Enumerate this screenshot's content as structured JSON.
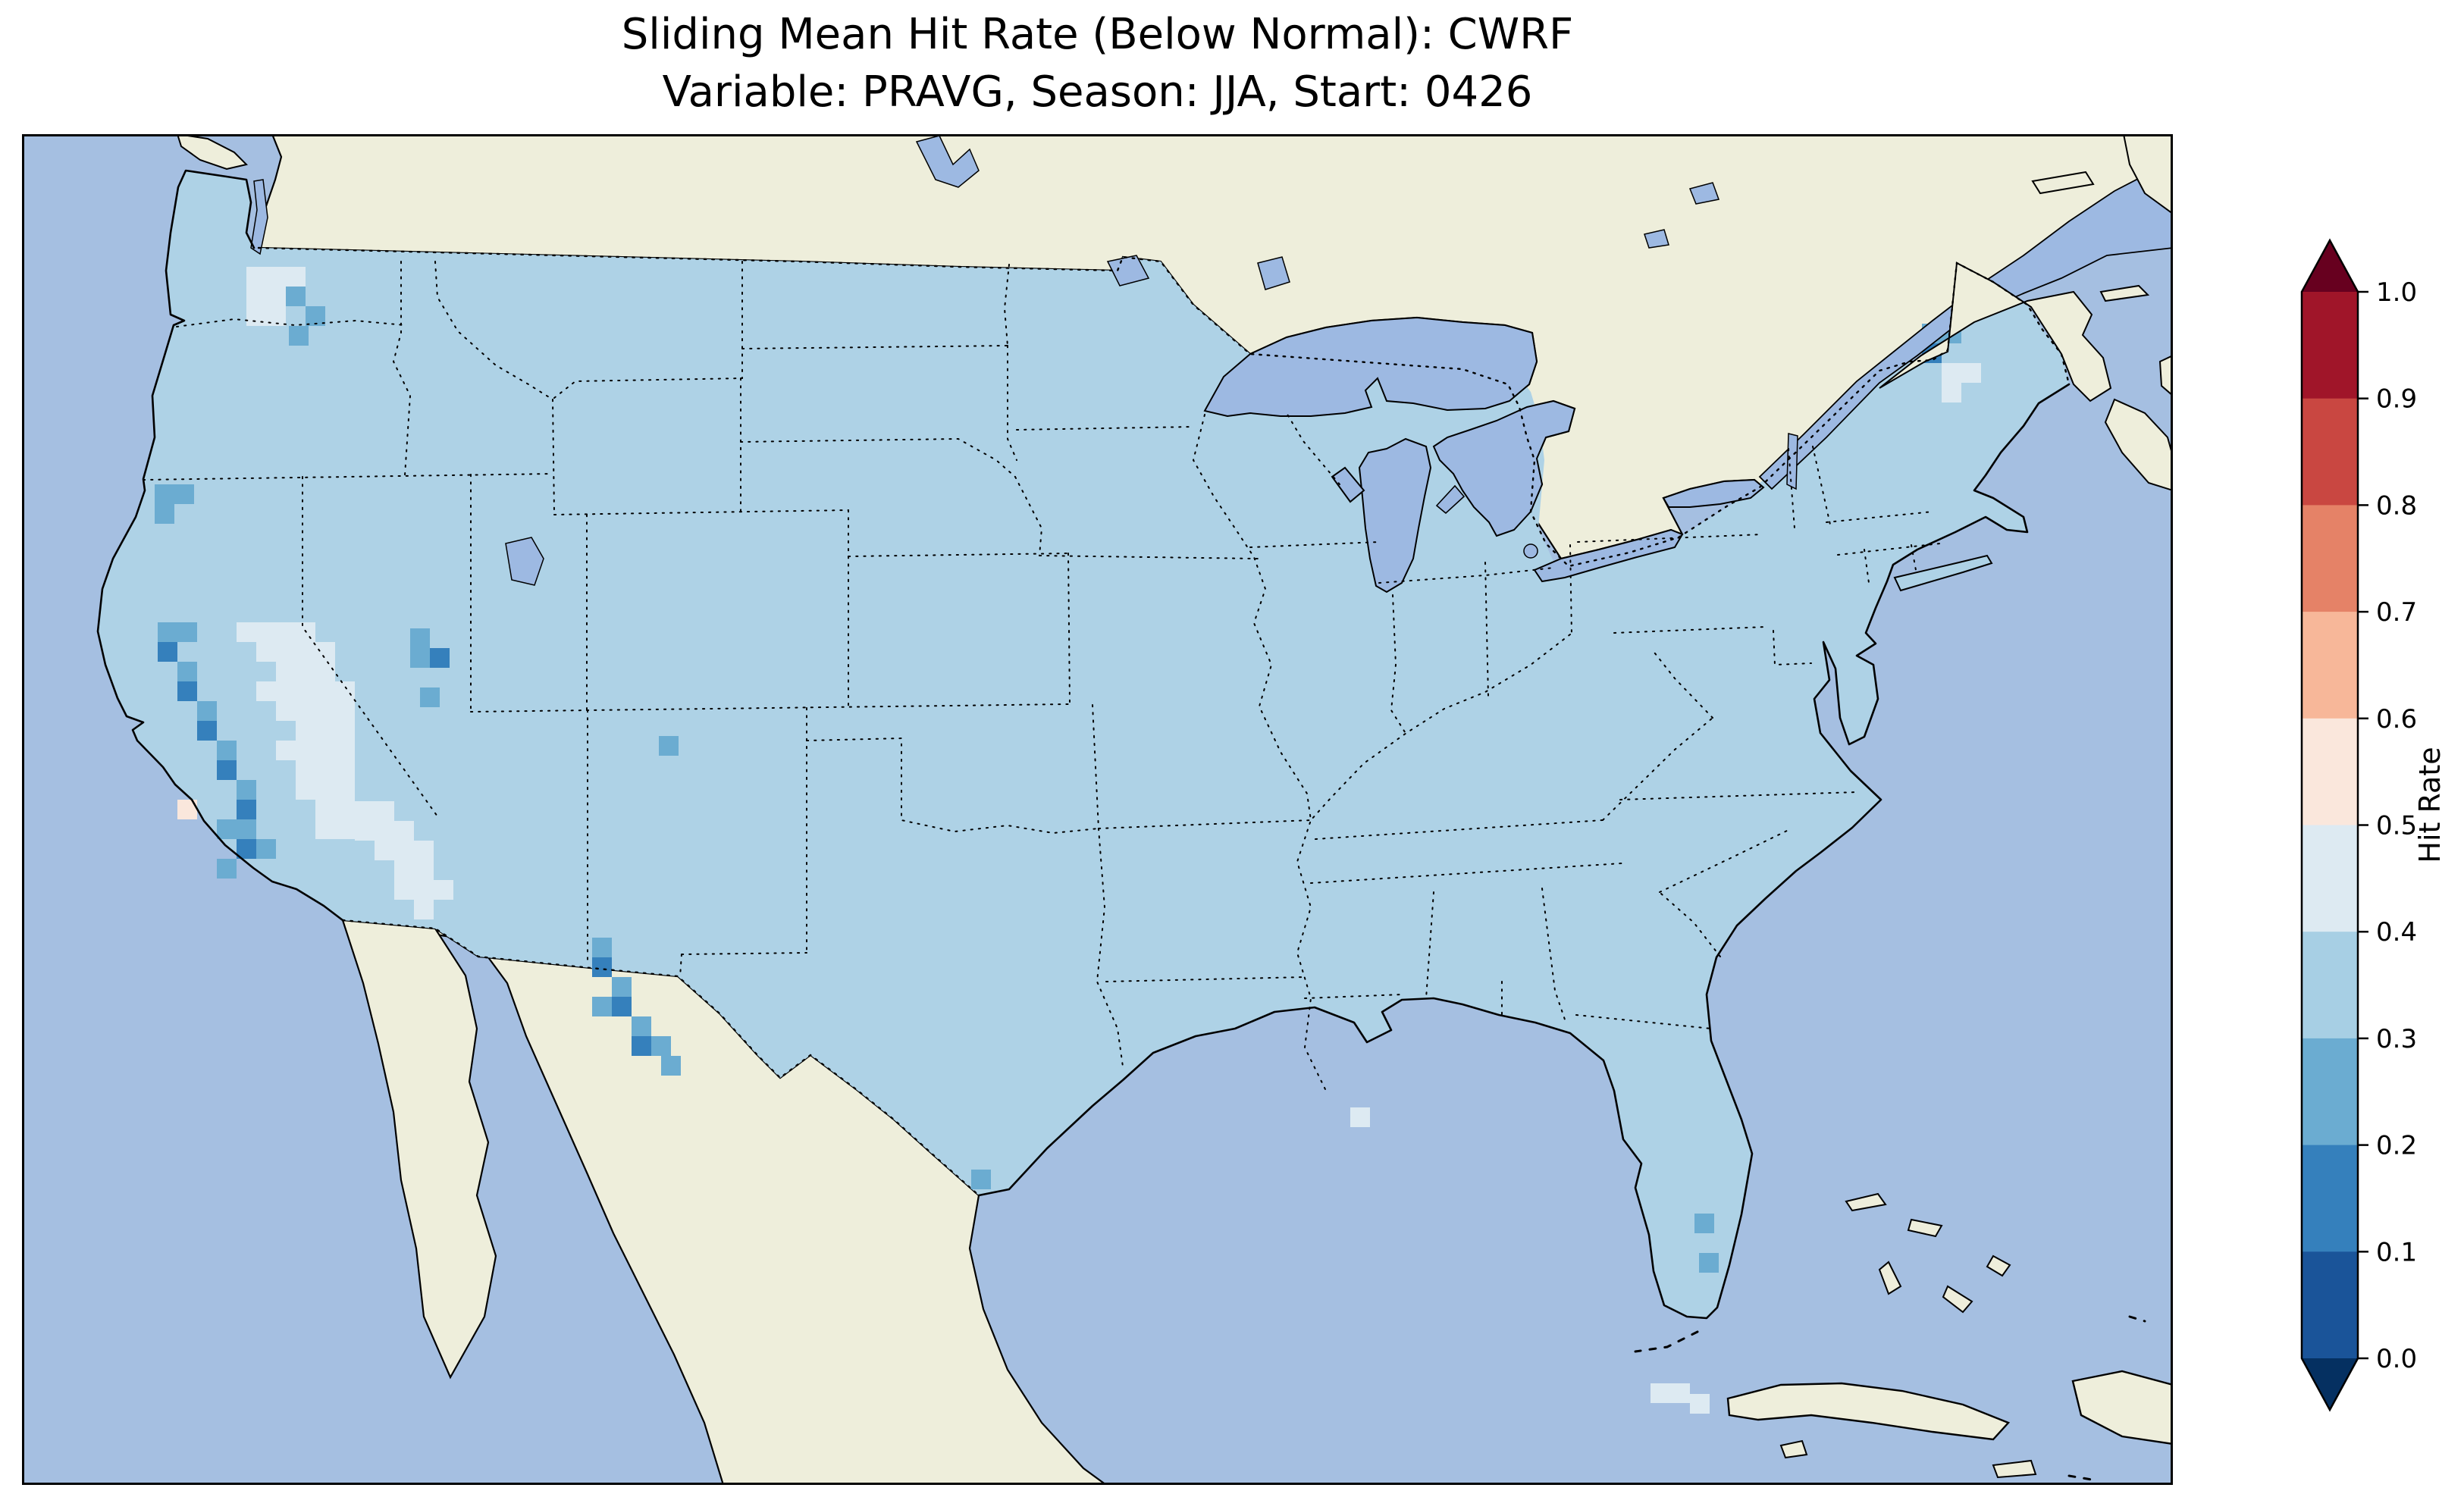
{
  "title": {
    "line1": "Sliding Mean Hit Rate (Below Normal): CWRF",
    "line2": "Variable: PRAVG, Season: JJA, Start: 0426"
  },
  "colorbar": {
    "label": "Hit Rate",
    "ticks": [
      "1.0",
      "0.9",
      "0.8",
      "0.7",
      "0.6",
      "0.5",
      "0.4",
      "0.3",
      "0.2",
      "0.1",
      "0.0"
    ],
    "segments": [
      "#a01529",
      "#c94741",
      "#e58267",
      "#f7b799",
      "#fae7dc",
      "#ddeaf2",
      "#a7cfe4",
      "#6bacd1",
      "#3580bc",
      "#1a5499"
    ],
    "arrow_top": "#67001f",
    "arrow_bottom": "#053061"
  },
  "map": {
    "colors": {
      "ocean": "#a5bfe1",
      "land": "#eeeedb",
      "lake": "#9db9e2",
      "base": "#aed2e6"
    }
  },
  "chart_data": {
    "type": "heatmap",
    "title": "Sliding Mean Hit Rate (Below Normal): CWRF",
    "metric": "Sliding Mean Hit Rate (Below Normal)",
    "model": "CWRF",
    "variable": "PRAVG",
    "season": "JJA",
    "start": "0426",
    "colormap": "RdBu_r",
    "value_range": [
      0.0,
      1.0
    ],
    "bin_width": 0.1,
    "colorbar_label": "Hit Rate",
    "legend_position": "right",
    "baseline_hit_rate": "0.3-0.4 over most of CONUS",
    "anomaly_regions": [
      {
        "region": "Western Washington / Puget Sound",
        "hit_rate": "0.4-0.5 with isolated 0.2-0.3"
      },
      {
        "region": "Eastern California / Sierra Nevada",
        "hit_rate": "0.1-0.3"
      },
      {
        "region": "Central Nevada",
        "hit_rate": "0.4-0.5"
      },
      {
        "region": "Southern Nevada / NW Arizona",
        "hit_rate": "0.4-0.5"
      },
      {
        "region": "Northern Utah",
        "hit_rate": "0.1-0.3"
      },
      {
        "region": "Central Colorado",
        "hit_rate": "0.2-0.3"
      },
      {
        "region": "Central New Mexico / West Texas border",
        "hit_rate": "0.1-0.3"
      },
      {
        "region": "South Texas coast",
        "hit_rate": "0.2-0.3"
      },
      {
        "region": "Northern Maine",
        "hit_rate": "0.1-0.3 with nearby 0.4-0.5"
      },
      {
        "region": "Southeast Florida",
        "hit_rate": "0.2-0.3"
      }
    ],
    "bin_colors": {
      "1": "#3580bc",
      "2": "#6bacd1",
      "4": "#ddeaf2",
      "5": "#fae7dc"
    },
    "bin_values": {
      "1": "0.1-0.2",
      "2": "0.2-0.3",
      "4": "0.4-0.5",
      "5": "0.5-0.6"
    },
    "cells": [
      [
        296,
        175,
        4
      ],
      [
        322,
        175,
        4
      ],
      [
        348,
        175,
        4
      ],
      [
        296,
        201,
        4
      ],
      [
        322,
        201,
        4
      ],
      [
        296,
        227,
        4
      ],
      [
        322,
        227,
        4
      ],
      [
        348,
        201,
        2
      ],
      [
        374,
        227,
        2
      ],
      [
        352,
        253,
        2
      ],
      [
        175,
        462,
        2
      ],
      [
        201,
        462,
        2
      ],
      [
        175,
        488,
        2
      ],
      [
        179,
        644,
        2
      ],
      [
        205,
        644,
        2
      ],
      [
        179,
        670,
        1
      ],
      [
        205,
        696,
        2
      ],
      [
        205,
        722,
        1
      ],
      [
        231,
        748,
        2
      ],
      [
        231,
        774,
        1
      ],
      [
        257,
        800,
        2
      ],
      [
        257,
        826,
        1
      ],
      [
        283,
        852,
        2
      ],
      [
        283,
        878,
        1
      ],
      [
        257,
        904,
        2
      ],
      [
        283,
        904,
        2
      ],
      [
        309,
        930,
        2
      ],
      [
        283,
        930,
        1
      ],
      [
        257,
        956,
        2
      ],
      [
        205,
        878,
        5
      ],
      [
        283,
        644,
        4
      ],
      [
        309,
        644,
        4
      ],
      [
        335,
        644,
        4
      ],
      [
        361,
        644,
        4
      ],
      [
        309,
        670,
        4
      ],
      [
        335,
        670,
        4
      ],
      [
        361,
        670,
        4
      ],
      [
        387,
        670,
        4
      ],
      [
        335,
        696,
        4
      ],
      [
        361,
        696,
        4
      ],
      [
        387,
        696,
        4
      ],
      [
        309,
        722,
        4
      ],
      [
        335,
        722,
        4
      ],
      [
        361,
        722,
        4
      ],
      [
        387,
        722,
        4
      ],
      [
        413,
        722,
        4
      ],
      [
        335,
        748,
        4
      ],
      [
        361,
        748,
        4
      ],
      [
        387,
        748,
        4
      ],
      [
        413,
        748,
        4
      ],
      [
        361,
        774,
        4
      ],
      [
        387,
        774,
        4
      ],
      [
        413,
        774,
        4
      ],
      [
        335,
        800,
        4
      ],
      [
        361,
        800,
        4
      ],
      [
        387,
        800,
        4
      ],
      [
        413,
        800,
        4
      ],
      [
        361,
        826,
        4
      ],
      [
        387,
        826,
        4
      ],
      [
        413,
        826,
        4
      ],
      [
        361,
        852,
        4
      ],
      [
        387,
        852,
        4
      ],
      [
        413,
        852,
        4
      ],
      [
        387,
        878,
        4
      ],
      [
        413,
        878,
        4
      ],
      [
        387,
        904,
        4
      ],
      [
        413,
        904,
        4
      ],
      [
        439,
        880,
        4
      ],
      [
        465,
        880,
        4
      ],
      [
        439,
        906,
        4
      ],
      [
        465,
        906,
        4
      ],
      [
        491,
        906,
        4
      ],
      [
        465,
        932,
        4
      ],
      [
        491,
        932,
        4
      ],
      [
        517,
        932,
        4
      ],
      [
        491,
        958,
        4
      ],
      [
        517,
        958,
        4
      ],
      [
        491,
        984,
        4
      ],
      [
        517,
        984,
        4
      ],
      [
        543,
        984,
        4
      ],
      [
        517,
        1010,
        4
      ],
      [
        512,
        652,
        2
      ],
      [
        512,
        678,
        2
      ],
      [
        538,
        678,
        1
      ],
      [
        525,
        730,
        2
      ],
      [
        840,
        794,
        2
      ],
      [
        752,
        1060,
        2
      ],
      [
        752,
        1086,
        1
      ],
      [
        778,
        1112,
        2
      ],
      [
        752,
        1138,
        2
      ],
      [
        778,
        1138,
        1
      ],
      [
        804,
        1164,
        2
      ],
      [
        804,
        1190,
        1
      ],
      [
        830,
        1190,
        2
      ],
      [
        843,
        1216,
        2
      ],
      [
        1252,
        1366,
        2
      ],
      [
        1752,
        1284,
        4
      ],
      [
        2506,
        250,
        2
      ],
      [
        2532,
        250,
        2
      ],
      [
        2506,
        276,
        1
      ],
      [
        2532,
        302,
        4
      ],
      [
        2558,
        302,
        4
      ],
      [
        2532,
        328,
        4
      ],
      [
        2206,
        1424,
        2
      ],
      [
        2212,
        1476,
        2
      ],
      [
        2148,
        1648,
        4
      ],
      [
        2174,
        1648,
        4
      ],
      [
        2200,
        1662,
        4
      ]
    ]
  }
}
